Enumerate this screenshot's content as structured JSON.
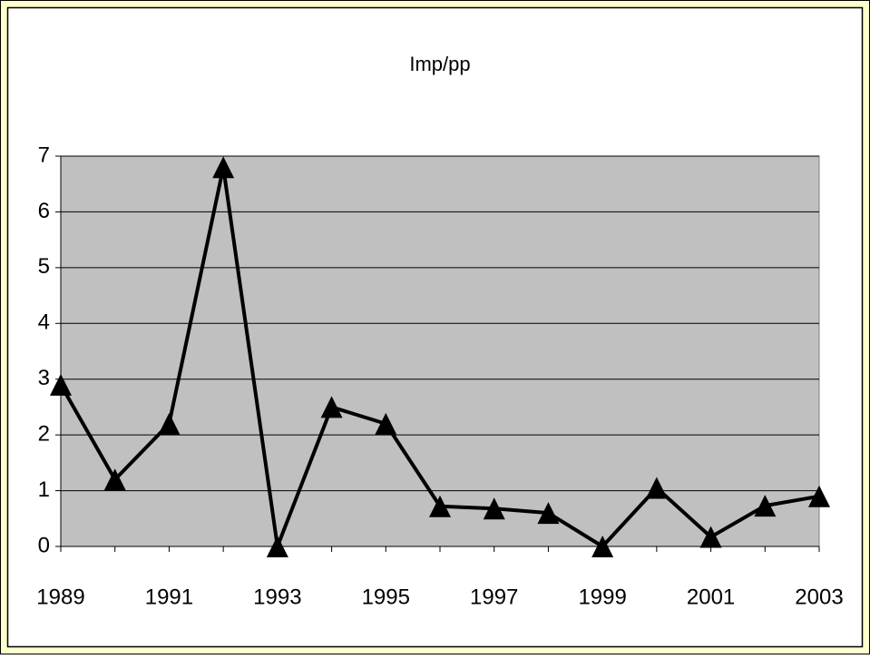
{
  "chart_data": {
    "type": "line",
    "title": "Imp/pp",
    "categories": [
      "1989",
      null,
      "1991",
      null,
      "1993",
      null,
      "1995",
      null,
      "1997",
      null,
      "1999",
      null,
      "2001",
      null,
      "2003"
    ],
    "values": [
      2.9,
      1.2,
      2.2,
      6.8,
      0,
      2.5,
      2.2,
      0.72,
      0.68,
      0.6,
      0,
      1.05,
      0.17,
      0.73,
      0.9
    ],
    "color": "#000000",
    "marker": "triangle",
    "ylim": [
      0,
      7
    ],
    "yticks": [
      0,
      1,
      2,
      3,
      4,
      5,
      6,
      7
    ],
    "grid": true
  }
}
